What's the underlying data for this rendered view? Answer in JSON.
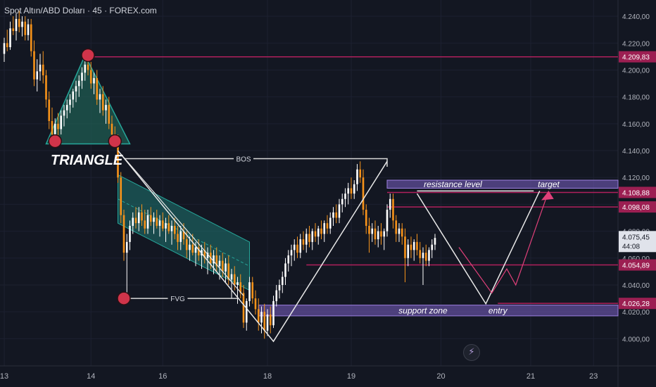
{
  "header": {
    "title": "Spot Altın/ABD Doları · 45 · FOREX.com"
  },
  "icons": {
    "flash": "lightning-icon"
  },
  "colors": {
    "background": "#131722",
    "bull": "#ffffff",
    "bear": "#f7931a",
    "grid": "#1c2030",
    "axis_text": "#b2b5be",
    "level_line": "#b0205c",
    "zone_fill": "#7b61c4",
    "triangle_fill": "#1f5c52",
    "triangle_stroke": "#26a69a",
    "channel_fill": "#1e6e6a",
    "circle_fill": "#d0344a",
    "price_tag_bg": "#9c1f52",
    "current_price_bg": "#e0e3eb",
    "projection": "#e8e8e8",
    "pink_arrow": "#e0407a"
  },
  "chart_data": {
    "type": "candlestick",
    "title": "Spot Altın/ABD Doları · 45 · FOREX.com",
    "ylim": [
      3985,
      4250
    ],
    "y_ticks": [
      "4.240,00",
      "4.220,00",
      "4.200,00",
      "4.180,00",
      "4.160,00",
      "4.140,00",
      "4.120,00",
      "4.100,00",
      "4.080,00",
      "4.060,00",
      "4.040,00",
      "4.020,00",
      "4.000,00"
    ],
    "y_tick_values": [
      4240,
      4220,
      4200,
      4180,
      4160,
      4140,
      4120,
      4100,
      4080,
      4060,
      4040,
      4020,
      4000
    ],
    "x_ticks": [
      "13",
      "14",
      "16",
      "18",
      "19",
      "20",
      "21",
      "23"
    ],
    "x_tick_index": [
      0,
      29,
      53,
      88,
      116,
      146,
      176,
      197
    ],
    "price_levels": [
      {
        "value": 4209.83,
        "label": "4.209,83",
        "from_index": 27
      },
      {
        "value": 4108.88,
        "label": "4.108,88",
        "from_index": 128
      },
      {
        "value": 4098.08,
        "label": "4.098,08",
        "from_index": 128
      },
      {
        "value": 4054.89,
        "label": "4.054,89",
        "from_index": 101
      },
      {
        "value": 4026.28,
        "label": "4.026,28",
        "from_index": 165
      }
    ],
    "current_price": {
      "value": 4075.45,
      "label": "4.075,45",
      "countdown": "44:08"
    },
    "zones": [
      {
        "name": "resistance level",
        "low": 4112,
        "high": 4118,
        "from_index": 128
      },
      {
        "name": "support zone",
        "low": 4017,
        "high": 4025,
        "from_index": 85
      }
    ],
    "annotations": {
      "pattern": "TRIANGLE",
      "bos": "BOS",
      "fvg": "FVG",
      "target": "target",
      "entry": "entry",
      "resistance": "resistance level",
      "support": "support zone"
    },
    "candles": [
      [
        4212,
        4224,
        4206,
        4220
      ],
      [
        4220,
        4230,
        4214,
        4217
      ],
      [
        4217,
        4236,
        4215,
        4231
      ],
      [
        4231,
        4240,
        4226,
        4229
      ],
      [
        4229,
        4242,
        4222,
        4238
      ],
      [
        4238,
        4244,
        4228,
        4232
      ],
      [
        4232,
        4240,
        4225,
        4236
      ],
      [
        4236,
        4240,
        4222,
        4226
      ],
      [
        4226,
        4238,
        4222,
        4234
      ],
      [
        4234,
        4238,
        4210,
        4214
      ],
      [
        4214,
        4222,
        4188,
        4193
      ],
      [
        4193,
        4208,
        4184,
        4199
      ],
      [
        4199,
        4212,
        4192,
        4204
      ],
      [
        4204,
        4214,
        4190,
        4196
      ],
      [
        4196,
        4200,
        4172,
        4178
      ],
      [
        4178,
        4184,
        4156,
        4162
      ],
      [
        4162,
        4172,
        4148,
        4152
      ],
      [
        4152,
        4164,
        4146,
        4160
      ],
      [
        4160,
        4168,
        4150,
        4156
      ],
      [
        4156,
        4170,
        4152,
        4166
      ],
      [
        4166,
        4174,
        4158,
        4170
      ],
      [
        4170,
        4178,
        4164,
        4174
      ],
      [
        4174,
        4182,
        4168,
        4178
      ],
      [
        4178,
        4186,
        4172,
        4184
      ],
      [
        4184,
        4192,
        4176,
        4188
      ],
      [
        4188,
        4196,
        4180,
        4192
      ],
      [
        4192,
        4202,
        4186,
        4198
      ],
      [
        4198,
        4210,
        4192,
        4204
      ],
      [
        4204,
        4211,
        4196,
        4200
      ],
      [
        4200,
        4206,
        4186,
        4190
      ],
      [
        4190,
        4198,
        4182,
        4194
      ],
      [
        4194,
        4200,
        4174,
        4178
      ],
      [
        4178,
        4186,
        4168,
        4182
      ],
      [
        4182,
        4188,
        4166,
        4170
      ],
      [
        4170,
        4178,
        4160,
        4174
      ],
      [
        4174,
        4180,
        4156,
        4160
      ],
      [
        4160,
        4166,
        4148,
        4152
      ],
      [
        4152,
        4158,
        4144,
        4147
      ],
      [
        4147,
        4152,
        4116,
        4120
      ],
      [
        4120,
        4124,
        4086,
        4092
      ],
      [
        4092,
        4096,
        4058,
        4064
      ],
      [
        4064,
        4078,
        4030,
        4072
      ],
      [
        4072,
        4088,
        4066,
        4084
      ],
      [
        4084,
        4094,
        4078,
        4090
      ],
      [
        4090,
        4098,
        4082,
        4086
      ],
      [
        4086,
        4098,
        4080,
        4094
      ],
      [
        4094,
        4100,
        4084,
        4088
      ],
      [
        4088,
        4096,
        4078,
        4082
      ],
      [
        4082,
        4096,
        4078,
        4092
      ],
      [
        4092,
        4098,
        4084,
        4087
      ],
      [
        4087,
        4094,
        4078,
        4090
      ],
      [
        4090,
        4096,
        4082,
        4084
      ],
      [
        4084,
        4092,
        4076,
        4088
      ],
      [
        4088,
        4094,
        4080,
        4082
      ],
      [
        4082,
        4090,
        4072,
        4086
      ],
      [
        4086,
        4092,
        4078,
        4080
      ],
      [
        4080,
        4088,
        4070,
        4084
      ],
      [
        4084,
        4090,
        4074,
        4078
      ],
      [
        4078,
        4084,
        4066,
        4072
      ],
      [
        4072,
        4084,
        4066,
        4080
      ],
      [
        4080,
        4086,
        4070,
        4074
      ],
      [
        4074,
        4080,
        4060,
        4066
      ],
      [
        4066,
        4076,
        4058,
        4070
      ],
      [
        4070,
        4078,
        4062,
        4064
      ],
      [
        4064,
        4072,
        4054,
        4068
      ],
      [
        4068,
        4074,
        4058,
        4062
      ],
      [
        4062,
        4070,
        4052,
        4066
      ],
      [
        4066,
        4072,
        4056,
        4060
      ],
      [
        4060,
        4068,
        4048,
        4064
      ],
      [
        4064,
        4070,
        4052,
        4056
      ],
      [
        4056,
        4066,
        4048,
        4062
      ],
      [
        4062,
        4068,
        4050,
        4054
      ],
      [
        4054,
        4062,
        4044,
        4058
      ],
      [
        4058,
        4064,
        4046,
        4050
      ],
      [
        4050,
        4060,
        4042,
        4056
      ],
      [
        4056,
        4062,
        4040,
        4044
      ],
      [
        4044,
        4052,
        4030,
        4048
      ],
      [
        4048,
        4054,
        4036,
        4040
      ],
      [
        4040,
        4046,
        4026,
        4042
      ],
      [
        4042,
        4048,
        4030,
        4034
      ],
      [
        4034,
        4040,
        4008,
        4012
      ],
      [
        4012,
        4030,
        4006,
        4028
      ],
      [
        4028,
        4046,
        4024,
        4042
      ],
      [
        4042,
        4046,
        4026,
        4030
      ],
      [
        4030,
        4036,
        4018,
        4022
      ],
      [
        4022,
        4030,
        4006,
        4012
      ],
      [
        4012,
        4024,
        4004,
        4020
      ],
      [
        4020,
        4026,
        4000,
        4006
      ],
      [
        4006,
        4022,
        4002,
        4018
      ],
      [
        4018,
        4024,
        4004,
        4010
      ],
      [
        4010,
        4032,
        4008,
        4028
      ],
      [
        4028,
        4040,
        4024,
        4036
      ],
      [
        4036,
        4044,
        4030,
        4040
      ],
      [
        4040,
        4050,
        4034,
        4046
      ],
      [
        4046,
        4060,
        4040,
        4056
      ],
      [
        4056,
        4066,
        4050,
        4062
      ],
      [
        4062,
        4070,
        4054,
        4066
      ],
      [
        4066,
        4074,
        4058,
        4070
      ],
      [
        4070,
        4076,
        4060,
        4064
      ],
      [
        4064,
        4078,
        4060,
        4074
      ],
      [
        4074,
        4080,
        4066,
        4070
      ],
      [
        4070,
        4082,
        4064,
        4078
      ],
      [
        4078,
        4084,
        4068,
        4072
      ],
      [
        4072,
        4082,
        4066,
        4080
      ],
      [
        4080,
        4086,
        4072,
        4076
      ],
      [
        4076,
        4084,
        4070,
        4082
      ],
      [
        4082,
        4088,
        4074,
        4078
      ],
      [
        4078,
        4088,
        4072,
        4086
      ],
      [
        4086,
        4092,
        4078,
        4082
      ],
      [
        4082,
        4094,
        4078,
        4090
      ],
      [
        4090,
        4098,
        4084,
        4094
      ],
      [
        4094,
        4100,
        4086,
        4090
      ],
      [
        4090,
        4104,
        4086,
        4100
      ],
      [
        4100,
        4108,
        4094,
        4104
      ],
      [
        4104,
        4112,
        4098,
        4108
      ],
      [
        4108,
        4116,
        4100,
        4112
      ],
      [
        4112,
        4120,
        4104,
        4108
      ],
      [
        4108,
        4118,
        4104,
        4115
      ],
      [
        4115,
        4130,
        4110,
        4126
      ],
      [
        4126,
        4132,
        4116,
        4120
      ],
      [
        4120,
        4126,
        4092,
        4096
      ],
      [
        4096,
        4100,
        4078,
        4084
      ],
      [
        4084,
        4090,
        4064,
        4078
      ],
      [
        4078,
        4086,
        4072,
        4082
      ],
      [
        4082,
        4088,
        4070,
        4074
      ],
      [
        4074,
        4084,
        4068,
        4080
      ],
      [
        4080,
        4086,
        4070,
        4076
      ],
      [
        4076,
        4082,
        4066,
        4080
      ],
      [
        4080,
        4100,
        4076,
        4096
      ],
      [
        4096,
        4108,
        4090,
        4104
      ],
      [
        4104,
        4108,
        4082,
        4088
      ],
      [
        4088,
        4092,
        4072,
        4078
      ],
      [
        4078,
        4086,
        4072,
        4082
      ],
      [
        4082,
        4086,
        4070,
        4076
      ],
      [
        4076,
        4082,
        4042,
        4060
      ],
      [
        4060,
        4074,
        4054,
        4070
      ],
      [
        4070,
        4076,
        4060,
        4066
      ],
      [
        4066,
        4074,
        4058,
        4072
      ],
      [
        4072,
        4078,
        4062,
        4066
      ],
      [
        4066,
        4072,
        4056,
        4060
      ],
      [
        4060,
        4068,
        4040,
        4064
      ],
      [
        4064,
        4070,
        4054,
        4058
      ],
      [
        4058,
        4068,
        4054,
        4066
      ],
      [
        4066,
        4074,
        4060,
        4070
      ],
      [
        4070,
        4078,
        4066,
        4075
      ]
    ]
  }
}
